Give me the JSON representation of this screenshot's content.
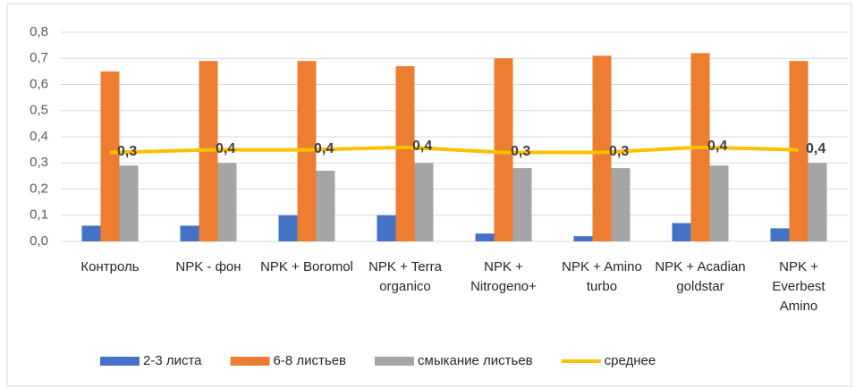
{
  "chart_data": {
    "type": "bar",
    "categories": [
      "Контроль",
      "NPK - фон",
      "NPK + Boromol",
      "NPK + Terra organico",
      "NPK + Nitrogeno+",
      "NPK + Amino turbo",
      "NPK + Acadian goldstar",
      "NPK + Everbest Amino"
    ],
    "series": [
      {
        "name": "2-3 листа",
        "color": "#4472c4",
        "type": "bar",
        "values": [
          0.06,
          0.06,
          0.1,
          0.1,
          0.03,
          0.02,
          0.07,
          0.05
        ]
      },
      {
        "name": "6-8 листьев",
        "color": "#ed7d31",
        "type": "bar",
        "values": [
          0.65,
          0.69,
          0.69,
          0.67,
          0.7,
          0.71,
          0.72,
          0.69
        ]
      },
      {
        "name": "смыкание листьев",
        "color": "#a5a5a5",
        "type": "bar",
        "values": [
          0.29,
          0.3,
          0.27,
          0.3,
          0.28,
          0.28,
          0.29,
          0.3
        ]
      },
      {
        "name": "среднее",
        "color": "#ffc000",
        "type": "line",
        "values": [
          0.34,
          0.35,
          0.35,
          0.36,
          0.34,
          0.34,
          0.36,
          0.35
        ],
        "value_labels": [
          "0,3",
          "0,4",
          "0,4",
          "0,4",
          "0,3",
          "0,3",
          "0,4",
          "0,4"
        ]
      }
    ],
    "ylim": [
      0,
      0.8
    ],
    "yticks": [
      {
        "value": 0,
        "label": "0,0"
      },
      {
        "value": 0.1,
        "label": "0,1"
      },
      {
        "value": 0.2,
        "label": "0,2"
      },
      {
        "value": 0.3,
        "label": "0,3"
      },
      {
        "value": 0.4,
        "label": "0,4"
      },
      {
        "value": 0.5,
        "label": "0,5"
      },
      {
        "value": 0.6,
        "label": "0,6"
      },
      {
        "value": 0.7,
        "label": "0,7"
      },
      {
        "value": 0.8,
        "label": "0,8"
      }
    ],
    "grid": true,
    "legend": "bottom"
  }
}
